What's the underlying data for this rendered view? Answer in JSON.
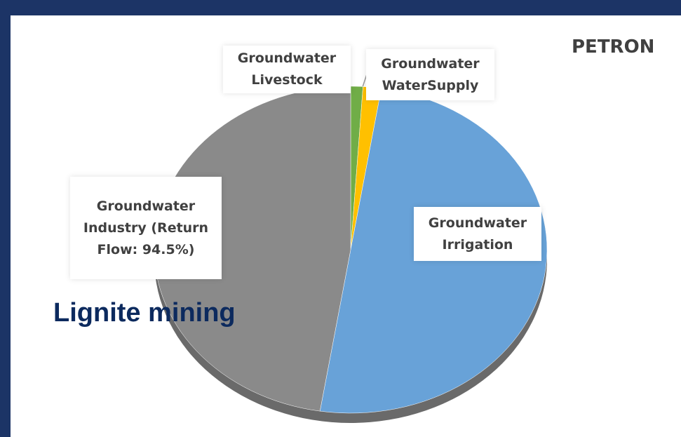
{
  "chart_data": {
    "type": "pie",
    "categories": [
      "Groundwater Livestock",
      "Groundwater WaterSupply",
      "Groundwater Irrigation",
      "Groundwater Industry (Return Flow: 94.5%)"
    ],
    "values": [
      1,
      1.5,
      50,
      47.5
    ],
    "colors": [
      "#70ad47",
      "#ffc000",
      "#68a2d8",
      "#8a8a8a"
    ],
    "annotations": [
      "PETRON",
      "Lignite mining"
    ]
  }
}
